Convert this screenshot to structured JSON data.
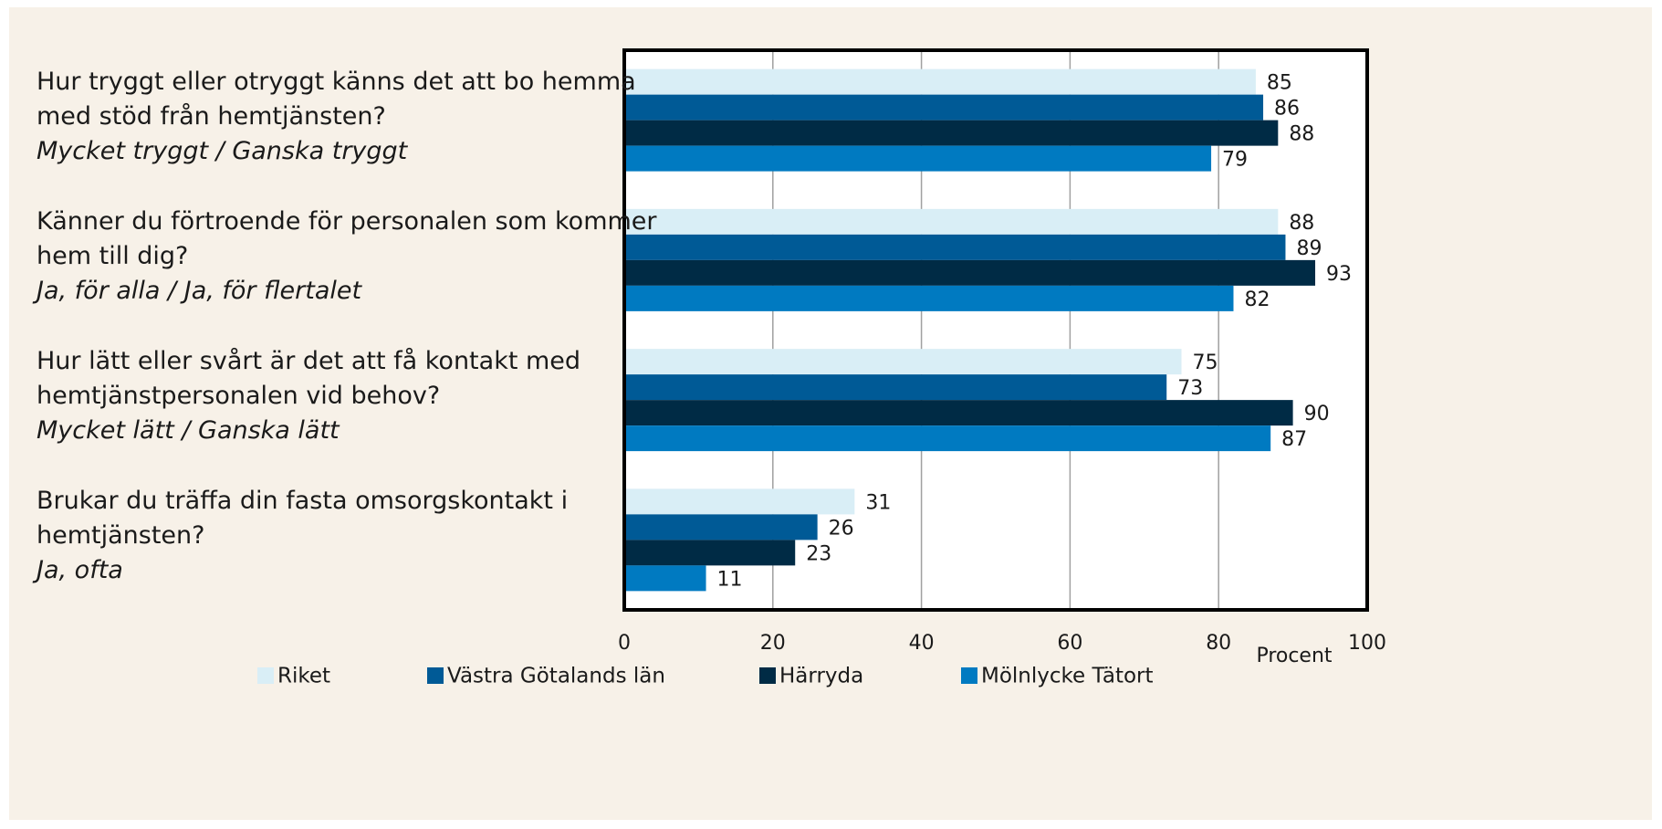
{
  "chart_data": {
    "type": "barh",
    "categories": [
      {
        "question": "Hur tryggt eller otryggt känns det att bo hemma med stöd från hemtjänsten?",
        "answer": "Mycket tryggt / Ganska tryggt"
      },
      {
        "question": "Känner du förtroende för personalen som kommer hem till dig?",
        "answer": "Ja, för alla / Ja, för flertalet"
      },
      {
        "question": "Hur lätt eller svårt är det att få kontakt med hemtjänstpersonalen vid behov?",
        "answer": "Mycket lätt / Ganska lätt"
      },
      {
        "question": "Brukar du träffa din fasta omsorgskontakt i hemtjänsten?",
        "answer": "Ja, ofta"
      }
    ],
    "series": [
      {
        "name": "Riket",
        "color": "#d9eef6",
        "values": [
          85,
          88,
          75,
          31
        ]
      },
      {
        "name": "Västra Götalands län",
        "color": "#005a96",
        "values": [
          86,
          89,
          73,
          26
        ]
      },
      {
        "name": "Härryda",
        "color": "#002b45",
        "values": [
          88,
          93,
          90,
          23
        ]
      },
      {
        "name": "Mölnlycke Tätort",
        "color": "#007ac1",
        "values": [
          79,
          82,
          87,
          11
        ]
      }
    ],
    "xlabel": "Procent",
    "xlim": [
      0,
      100
    ],
    "xticks": [
      0,
      20,
      40,
      60,
      80,
      100
    ],
    "grid": true,
    "legend": "bottom"
  }
}
